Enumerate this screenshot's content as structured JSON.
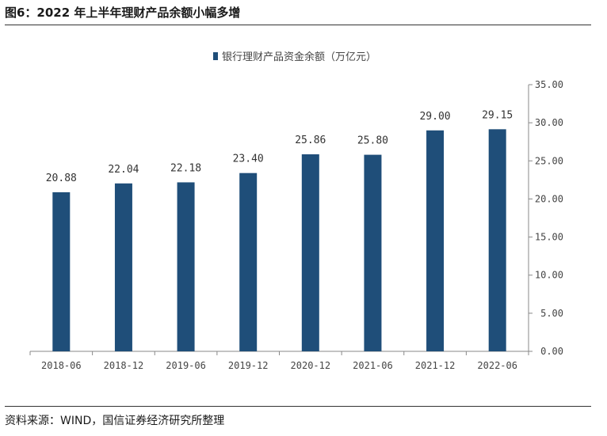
{
  "title": "图6：2022 年上半年理财产品余额小幅多增",
  "source": "资料来源：WIND，国信证券经济研究所整理",
  "chart_data": {
    "type": "bar",
    "categories": [
      "2018-06",
      "2018-12",
      "2019-06",
      "2019-12",
      "2020-12",
      "2021-06",
      "2021-12",
      "2022-06"
    ],
    "series": [
      {
        "name": "银行理财产品资金余额（万亿元）",
        "values": [
          20.88,
          22.04,
          22.18,
          23.4,
          25.86,
          25.8,
          29.0,
          29.15
        ],
        "color": "#1f4e79"
      }
    ],
    "data_labels": [
      "20.88",
      "22.04",
      "22.18",
      "23.40",
      "25.86",
      "25.80",
      "29.00",
      "29.15"
    ],
    "y_ticks": [
      "0.00",
      "5.00",
      "10.00",
      "15.00",
      "20.00",
      "25.00",
      "30.00",
      "35.00"
    ],
    "ylim": [
      0,
      35
    ],
    "y_axis_position": "right",
    "legend_position": "top-center",
    "grid": false
  }
}
